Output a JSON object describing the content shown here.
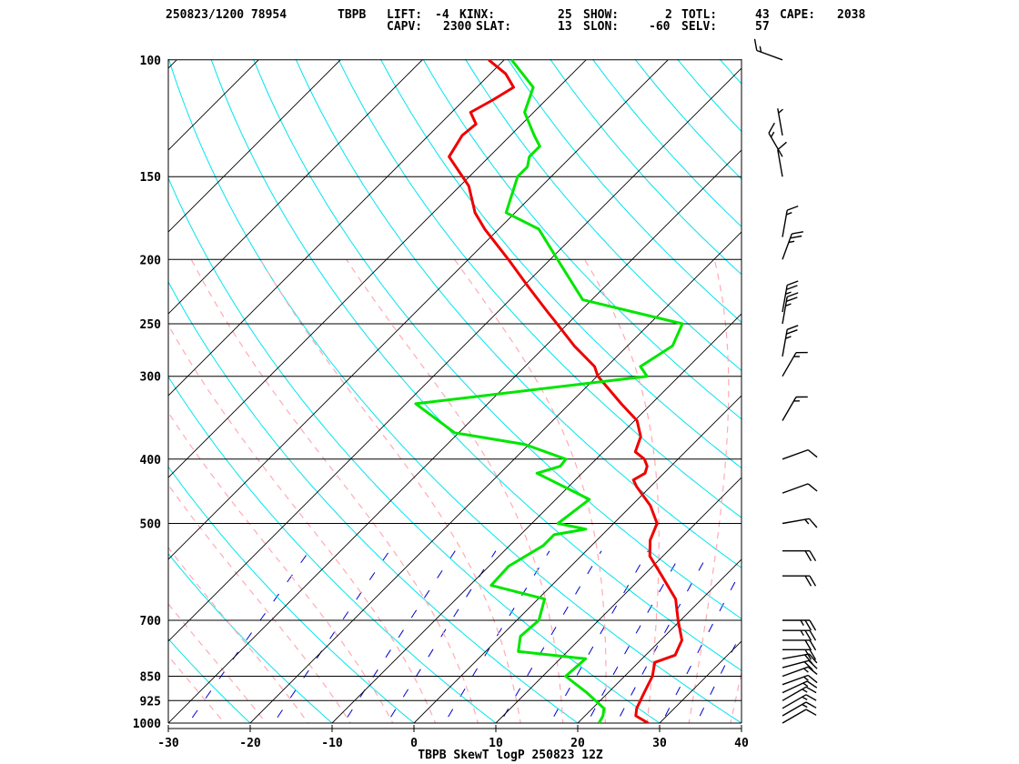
{
  "header": {
    "date_station": "250823/1200 78954",
    "station_id": "TBPB",
    "indices_line1": [
      {
        "label": "LIFT:",
        "value": "-4"
      },
      {
        "label": "KINX:",
        "value": "25"
      },
      {
        "label": "SHOW:",
        "value": "2"
      },
      {
        "label": "TOTL:",
        "value": "43"
      },
      {
        "label": "CAPE:",
        "value": "2038"
      }
    ],
    "indices_line2": [
      {
        "label": "CAPV:",
        "value": "2300"
      },
      {
        "label": "SLAT:",
        "value": "13"
      },
      {
        "label": "SLON:",
        "value": "-60"
      },
      {
        "label": "SELV:",
        "value": "57"
      }
    ]
  },
  "chart_data": {
    "type": "line",
    "title": "TBPB SkewT logP 250823 12Z",
    "xlabel": "",
    "ylabel": "",
    "x_ticks": [
      -30,
      -20,
      -10,
      0,
      10,
      20,
      30,
      40
    ],
    "p_ticks": [
      100,
      150,
      200,
      250,
      300,
      400,
      500,
      700,
      850,
      925,
      1000
    ],
    "xlim": [
      -30,
      40
    ],
    "plim": [
      1000,
      100
    ],
    "y_scale": "log-pressure",
    "x_skew": "45-degree",
    "colors": {
      "temperature": "#ee0000",
      "dewpoint": "#00e600",
      "isobars": "#000000",
      "isotherms": "#000000",
      "dry_adiabats": "#00e5ee",
      "moist_adiabats": "#ffaab4",
      "mixing_ratio": "#0000cc",
      "wind_barbs": "#000000"
    },
    "series": [
      {
        "id": "temperature",
        "points": [
          [
            1000,
            28.6
          ],
          [
            975,
            26.2
          ],
          [
            950,
            25.4
          ],
          [
            900,
            24.4
          ],
          [
            850,
            23.4
          ],
          [
            810,
            22.0
          ],
          [
            790,
            23.6
          ],
          [
            750,
            22.6
          ],
          [
            700,
            19.7
          ],
          [
            650,
            16.8
          ],
          [
            600,
            12.3
          ],
          [
            560,
            8.4
          ],
          [
            530,
            6.5
          ],
          [
            500,
            5.3
          ],
          [
            470,
            2.3
          ],
          [
            440,
            -1.7
          ],
          [
            430,
            -2.9
          ],
          [
            420,
            -2.3
          ],
          [
            410,
            -2.9
          ],
          [
            400,
            -4.1
          ],
          [
            390,
            -6.1
          ],
          [
            370,
            -7.3
          ],
          [
            350,
            -9.7
          ],
          [
            330,
            -13.7
          ],
          [
            300,
            -19.9
          ],
          [
            290,
            -21.5
          ],
          [
            270,
            -26.5
          ],
          [
            250,
            -31.3
          ],
          [
            240,
            -33.9
          ],
          [
            220,
            -39.3
          ],
          [
            200,
            -45.1
          ],
          [
            180,
            -51.7
          ],
          [
            170,
            -54.9
          ],
          [
            155,
            -58.9
          ],
          [
            140,
            -64.9
          ],
          [
            130,
            -65.9
          ],
          [
            125,
            -65.6
          ],
          [
            120,
            -67.7
          ],
          [
            115,
            -66.5
          ],
          [
            110,
            -65.5
          ],
          [
            105,
            -68.1
          ],
          [
            100,
            -71.9
          ]
        ]
      },
      {
        "id": "dewpoint",
        "points": [
          [
            1000,
            22.6
          ],
          [
            975,
            22.2
          ],
          [
            950,
            21.4
          ],
          [
            900,
            17.4
          ],
          [
            850,
            12.8
          ],
          [
            800,
            13.1
          ],
          [
            780,
            4.0
          ],
          [
            740,
            2.4
          ],
          [
            700,
            2.7
          ],
          [
            650,
            0.8
          ],
          [
            620,
            -7.4
          ],
          [
            580,
            -7.6
          ],
          [
            540,
            -5.9
          ],
          [
            520,
            -5.9
          ],
          [
            510,
            -2.7
          ],
          [
            500,
            -6.8
          ],
          [
            460,
            -5.9
          ],
          [
            420,
            -15.5
          ],
          [
            410,
            -13.5
          ],
          [
            400,
            -13.7
          ],
          [
            380,
            -20.5
          ],
          [
            365,
            -30.5
          ],
          [
            330,
            -38.8
          ],
          [
            300,
            -13.9
          ],
          [
            290,
            -15.9
          ],
          [
            270,
            -14.5
          ],
          [
            250,
            -16.0
          ],
          [
            230,
            -31.1
          ],
          [
            200,
            -39.1
          ],
          [
            180,
            -45.1
          ],
          [
            170,
            -51.1
          ],
          [
            150,
            -54.1
          ],
          [
            145,
            -54.1
          ],
          [
            140,
            -55.1
          ],
          [
            135,
            -55.1
          ],
          [
            130,
            -57.1
          ],
          [
            120,
            -61.1
          ],
          [
            110,
            -63.1
          ],
          [
            100,
            -69.1
          ]
        ]
      }
    ],
    "wind_barbs": [
      {
        "p": 1000,
        "dir": 60,
        "spd": 10
      },
      {
        "p": 975,
        "dir": 60,
        "spd": 15
      },
      {
        "p": 950,
        "dir": 60,
        "spd": 15
      },
      {
        "p": 925,
        "dir": 60,
        "spd": 15
      },
      {
        "p": 900,
        "dir": 65,
        "spd": 15
      },
      {
        "p": 875,
        "dir": 70,
        "spd": 15
      },
      {
        "p": 850,
        "dir": 70,
        "spd": 15
      },
      {
        "p": 825,
        "dir": 75,
        "spd": 20
      },
      {
        "p": 800,
        "dir": 80,
        "spd": 20
      },
      {
        "p": 775,
        "dir": 90,
        "spd": 20
      },
      {
        "p": 750,
        "dir": 90,
        "spd": 20
      },
      {
        "p": 725,
        "dir": 90,
        "spd": 25
      },
      {
        "p": 700,
        "dir": 90,
        "spd": 25
      },
      {
        "p": 600,
        "dir": 90,
        "spd": 20
      },
      {
        "p": 550,
        "dir": 90,
        "spd": 20
      },
      {
        "p": 500,
        "dir": 80,
        "spd": 15
      },
      {
        "p": 450,
        "dir": 70,
        "spd": 10
      },
      {
        "p": 400,
        "dir": 70,
        "spd": 10
      },
      {
        "p": 350,
        "dir": 30,
        "spd": 15
      },
      {
        "p": 300,
        "dir": 30,
        "spd": 15
      },
      {
        "p": 280,
        "dir": 10,
        "spd": 25
      },
      {
        "p": 250,
        "dir": 10,
        "spd": 25
      },
      {
        "p": 240,
        "dir": 10,
        "spd": 25
      },
      {
        "p": 200,
        "dir": 20,
        "spd": 25
      },
      {
        "p": 185,
        "dir": 10,
        "spd": 15
      },
      {
        "p": 150,
        "dir": 350,
        "spd": 10
      },
      {
        "p": 140,
        "dir": 330,
        "spd": 15
      },
      {
        "p": 130,
        "dir": 350,
        "spd": 5
      },
      {
        "p": 100,
        "dir": 290,
        "spd": 15
      }
    ]
  }
}
